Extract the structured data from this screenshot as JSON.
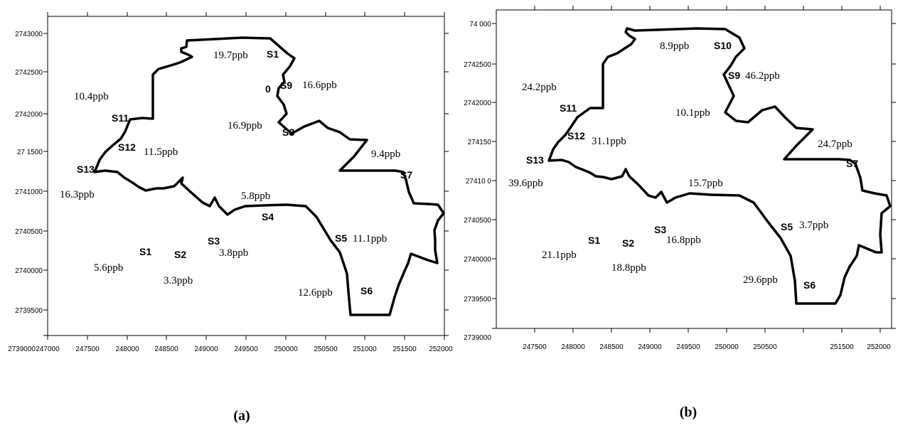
{
  "colors": {
    "boundary": "#000000",
    "frame": "#000000",
    "background": "#ffffff"
  },
  "panels": [
    {
      "caption": "(a)",
      "x_ticks": [
        "247000",
        "247500",
        "248000",
        "248500",
        "249000",
        "249500",
        "250000",
        "250500",
        "251000",
        "251500",
        "252000"
      ],
      "y_ticks": [
        "2743000",
        "2742500",
        "2742000",
        "27 1500",
        "2741000",
        "2740500",
        "2740000",
        "2739500",
        "2739000"
      ],
      "sites": [
        "S1",
        "S9",
        "0",
        "S8",
        "S11",
        "S12",
        "S13",
        "S7",
        "S4",
        "S5",
        "S6",
        "S1",
        "S2",
        "S3"
      ],
      "values": [
        "19.7ppb",
        "16.6ppb",
        "10.4ppb",
        "16.9ppb",
        "11.5ppb",
        "9.4ppb",
        "16.3ppb",
        "5.8ppb",
        "11.1ppb",
        "5.6ppb",
        "3.8ppb",
        "3.3ppb",
        "12.6ppb"
      ]
    },
    {
      "caption": "(b)",
      "x_ticks": [
        "247500",
        "248000",
        "248500",
        "249000",
        "249500",
        "250000",
        "250500",
        "251500",
        "252000"
      ],
      "y_ticks": [
        "74 000",
        "2742500",
        "2742000",
        "274150",
        "27410 0",
        "2740500",
        "2740000",
        "2739500",
        "2739000"
      ],
      "sites": [
        "S10",
        "S9",
        "S11",
        "S12",
        "S13",
        "S7",
        "S5",
        "S1",
        "S2",
        "S3",
        "S6"
      ],
      "values": [
        "8.9ppb",
        "46.2ppb",
        "24.2ppb",
        "10.1ppb",
        "31.1ppb",
        "24.7ppb",
        "39.6ppb",
        "15.7ppb",
        "3.7ppb",
        "16.8ppb",
        "21.1ppb",
        "18.8ppb",
        "29.6ppb"
      ]
    }
  ]
}
